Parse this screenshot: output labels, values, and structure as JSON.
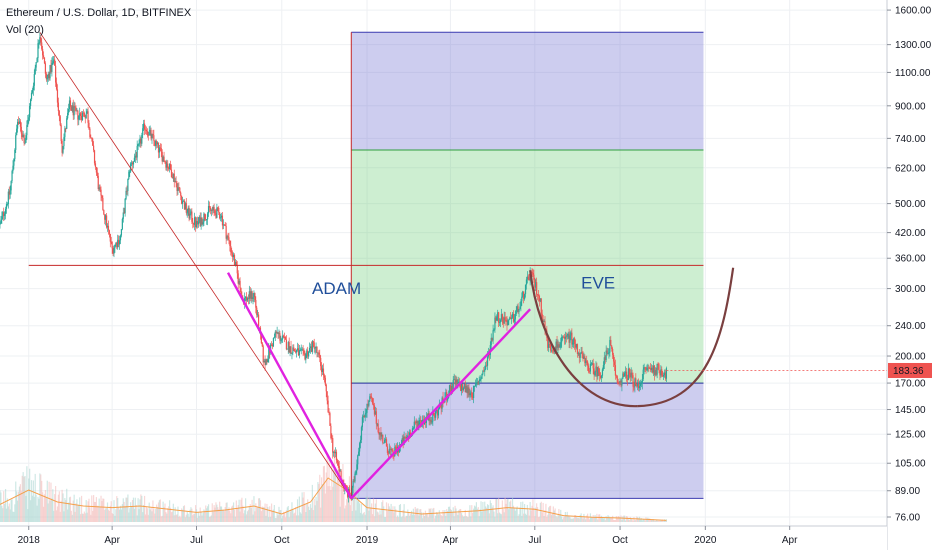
{
  "header": {
    "symbol": "Ethereum / U.S. Dollar, 1D, BITFINEX",
    "volume_indicator": "Vol (20)"
  },
  "colors": {
    "up": "#26a69a",
    "down": "#ef5350",
    "purple_zone": "#6f6fd0",
    "green_zone": "#6fcf7a",
    "magenta_line": "#e022e0",
    "cup_curve": "#7a3f3f",
    "red_line": "#c62828",
    "volume_ma": "#f5a04a",
    "price_tag": "#ef5350"
  },
  "chart_data": {
    "type": "candlestick",
    "title": "Ethereum / U.S. Dollar, 1D, BITFINEX",
    "y_scale": "log",
    "ylim": [
      72,
      1700
    ],
    "xlim": [
      "2017-12-01",
      "2020-07-15"
    ],
    "y_ticks": [
      "1600.00",
      "1300.00",
      "1100.00",
      "900.00",
      "740.00",
      "620.00",
      "500.00",
      "420.00",
      "360.00",
      "300.00",
      "240.00",
      "200.00",
      "170.00",
      "145.00",
      "125.00",
      "105.00",
      "89.00",
      "76.00"
    ],
    "x_ticks": [
      "2018",
      "Apr",
      "Jul",
      "Oct",
      "2019",
      "Apr",
      "Jul",
      "Oct",
      "2020",
      "Apr"
    ],
    "last_price": "183.36",
    "price_path": [
      [
        "2017-12-01",
        440
      ],
      [
        "2017-12-12",
        540
      ],
      [
        "2017-12-20",
        820
      ],
      [
        "2017-12-28",
        730
      ],
      [
        "2018-01-05",
        1000
      ],
      [
        "2018-01-13",
        1400
      ],
      [
        "2018-01-20",
        1050
      ],
      [
        "2018-01-28",
        1180
      ],
      [
        "2018-02-06",
        700
      ],
      [
        "2018-02-14",
        900
      ],
      [
        "2018-02-22",
        850
      ],
      [
        "2018-03-05",
        860
      ],
      [
        "2018-03-18",
        540
      ],
      [
        "2018-04-01",
        380
      ],
      [
        "2018-04-10",
        410
      ],
      [
        "2018-04-20",
        620
      ],
      [
        "2018-04-30",
        700
      ],
      [
        "2018-05-06",
        800
      ],
      [
        "2018-05-20",
        700
      ],
      [
        "2018-06-05",
        600
      ],
      [
        "2018-06-20",
        480
      ],
      [
        "2018-07-01",
        440
      ],
      [
        "2018-07-15",
        480
      ],
      [
        "2018-07-27",
        470
      ],
      [
        "2018-08-10",
        360
      ],
      [
        "2018-08-20",
        280
      ],
      [
        "2018-09-01",
        290
      ],
      [
        "2018-09-12",
        190
      ],
      [
        "2018-09-25",
        230
      ],
      [
        "2018-10-10",
        210
      ],
      [
        "2018-10-25",
        200
      ],
      [
        "2018-11-05",
        215
      ],
      [
        "2018-11-15",
        180
      ],
      [
        "2018-11-25",
        115
      ],
      [
        "2018-12-08",
        90
      ],
      [
        "2018-12-15",
        85
      ],
      [
        "2018-12-28",
        140
      ],
      [
        "2019-01-05",
        155
      ],
      [
        "2019-01-15",
        125
      ],
      [
        "2019-01-28",
        110
      ],
      [
        "2019-02-10",
        120
      ],
      [
        "2019-02-25",
        135
      ],
      [
        "2019-03-15",
        140
      ],
      [
        "2019-04-05",
        170
      ],
      [
        "2019-04-25",
        160
      ],
      [
        "2019-05-10",
        190
      ],
      [
        "2019-05-20",
        255
      ],
      [
        "2019-06-05",
        245
      ],
      [
        "2019-06-15",
        270
      ],
      [
        "2019-06-26",
        330
      ],
      [
        "2019-07-05",
        290
      ],
      [
        "2019-07-16",
        210
      ],
      [
        "2019-07-28",
        215
      ],
      [
        "2019-08-08",
        225
      ],
      [
        "2019-08-25",
        190
      ],
      [
        "2019-09-10",
        180
      ],
      [
        "2019-09-20",
        215
      ],
      [
        "2019-09-28",
        170
      ],
      [
        "2019-10-10",
        180
      ],
      [
        "2019-10-20",
        165
      ],
      [
        "2019-10-28",
        185
      ],
      [
        "2019-11-10",
        185
      ],
      [
        "2019-11-20",
        180
      ]
    ],
    "volume_ma_path": [
      [
        "2017-12-01",
        0.22
      ],
      [
        "2018-01-01",
        0.4
      ],
      [
        "2018-02-01",
        0.25
      ],
      [
        "2018-03-01",
        0.2
      ],
      [
        "2018-04-01",
        0.18
      ],
      [
        "2018-05-01",
        0.2
      ],
      [
        "2018-06-01",
        0.16
      ],
      [
        "2018-07-01",
        0.12
      ],
      [
        "2018-08-01",
        0.15
      ],
      [
        "2018-09-01",
        0.2
      ],
      [
        "2018-10-01",
        0.1
      ],
      [
        "2018-11-01",
        0.25
      ],
      [
        "2018-11-20",
        0.55
      ],
      [
        "2018-12-10",
        0.4
      ],
      [
        "2019-01-01",
        0.18
      ],
      [
        "2019-03-01",
        0.1
      ],
      [
        "2019-05-01",
        0.14
      ],
      [
        "2019-06-01",
        0.18
      ],
      [
        "2019-07-01",
        0.16
      ],
      [
        "2019-08-01",
        0.08
      ],
      [
        "2019-09-01",
        0.06
      ],
      [
        "2019-10-01",
        0.05
      ],
      [
        "2019-11-20",
        0.02
      ]
    ],
    "annotations": {
      "adam_label": "ADAM",
      "eve_label": "EVE",
      "purple_zone_upper": {
        "x": [
          "2018-12-15",
          "2019-12-30"
        ],
        "y": [
          690,
          1400
        ]
      },
      "green_zone": {
        "x": [
          "2018-12-15",
          "2019-12-30"
        ],
        "y": [
          170,
          690
        ]
      },
      "purple_zone_lower": {
        "x": [
          "2018-12-15",
          "2019-12-30"
        ],
        "y": [
          85,
          170
        ]
      },
      "horizontal_line_price": 345,
      "horizontal_line_x": [
        "2018-01-01",
        "2019-12-30"
      ],
      "vertical_line_date": "2018-12-15",
      "trendline_top": {
        "date": "2018-01-13",
        "price": 1400
      },
      "trendline_bottom": {
        "date": "2018-12-15",
        "price": 85
      },
      "adam_left_leg": [
        [
          "2018-08-04",
          330
        ],
        [
          "2018-12-15",
          85
        ]
      ],
      "adam_right_leg": [
        [
          "2018-12-15",
          85
        ],
        [
          "2019-06-26",
          265
        ]
      ],
      "eve_cup": [
        [
          "2019-06-26",
          335
        ],
        [
          "2019-10-20",
          148
        ],
        [
          "2020-01-31",
          340
        ]
      ]
    }
  }
}
